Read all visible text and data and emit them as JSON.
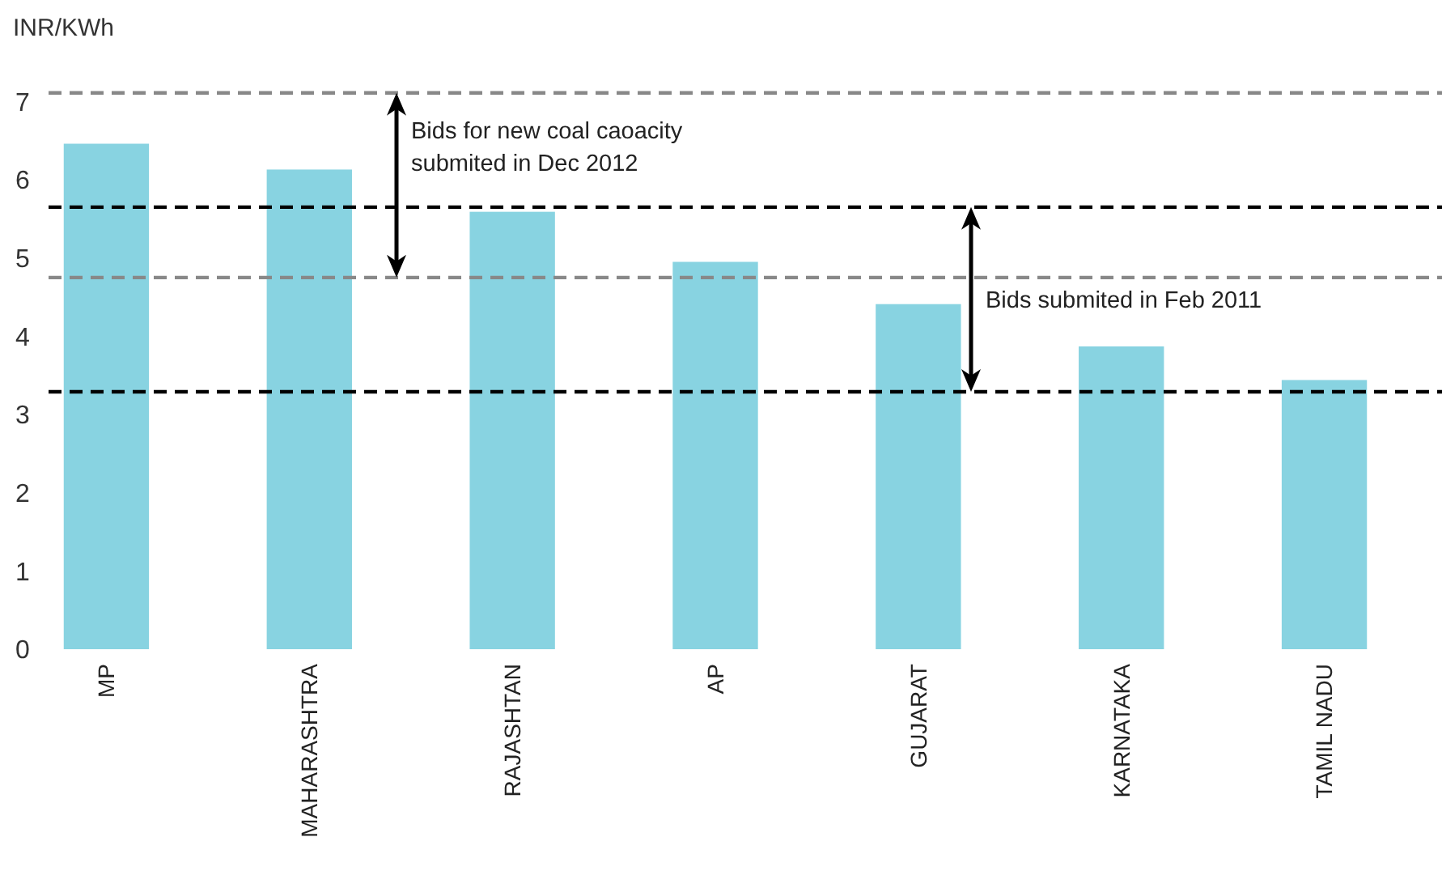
{
  "chart_data": {
    "type": "bar",
    "ylabel": "INR/KWh",
    "categories": [
      "MP",
      "MAHARASHTRA",
      "RAJASHTAN",
      "AP",
      "GUJARAT",
      "KARNATAKA",
      "TAMIL NADU"
    ],
    "values": [
      6.46,
      6.13,
      5.59,
      4.95,
      4.41,
      3.87,
      3.44
    ],
    "color": "#88d3e1",
    "ylim": [
      0,
      7.2
    ],
    "yticks": [
      0,
      1,
      2,
      3,
      4,
      5,
      6,
      7
    ],
    "grid": false,
    "ref_lines": [
      {
        "axis": "y",
        "value": 7.11,
        "color": "#888888",
        "line_style": "dashed"
      },
      {
        "axis": "y",
        "value": 4.75,
        "color": "#888888",
        "line_style": "dashed"
      },
      {
        "axis": "y",
        "value": 5.65,
        "color": "#000000",
        "line_style": "dashed"
      },
      {
        "axis": "y",
        "value": 3.29,
        "color": "#000000",
        "line_style": "dashed"
      }
    ],
    "annotations": [
      "Bids for new coal caoacity submited in Dec 2012",
      "Bids submited in Feb 2011"
    ]
  }
}
